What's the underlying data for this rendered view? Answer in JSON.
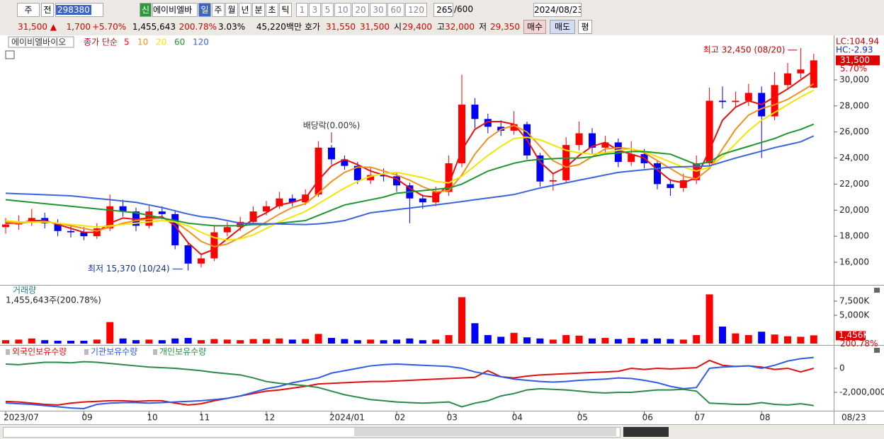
{
  "toolbar": {
    "type_menu": "주",
    "prev": "전",
    "code": "298380",
    "new": "신",
    "name": "에이비엘바",
    "periods": [
      "일",
      "주",
      "월",
      "년",
      "분",
      "초",
      "틱"
    ],
    "intervals": [
      "1",
      "3",
      "5",
      "10",
      "20",
      "30",
      "60",
      "120"
    ],
    "count": "265",
    "max": "/600",
    "date": "2024/08/23"
  },
  "quote": {
    "price": "31,500 ▲",
    "change": "1,700",
    "rate": "+5.70%",
    "volume": "1,455,643",
    "volume_ratio": "200.78%",
    "turnover": "3.03%",
    "amount": "45,220백만",
    "ask_label": "호가",
    "ask": "31,550",
    "bid": "31,500",
    "open_label": "시",
    "open": "29,400",
    "high_label": "고",
    "high": "32,000",
    "low_label": "저",
    "low": "29,350",
    "buttons": [
      "매수",
      "매도",
      "평"
    ]
  },
  "chart_data": [
    {
      "type": "candlestick",
      "title": "에이비엘바이오",
      "subtitle": "종가 단순",
      "up_color": "#ff0000",
      "down_color": "#0000ff",
      "open": [
        18700,
        18900,
        19100,
        19400,
        19000,
        18400,
        18300,
        18000,
        18600,
        20300,
        19900,
        18800,
        19900,
        19700,
        17300,
        15900,
        16300,
        18300,
        18700,
        19100,
        19900,
        20300,
        20900,
        20600,
        21200,
        24800,
        23900,
        23400,
        22300,
        22700,
        22600,
        21900,
        20900,
        20600,
        21400,
        23600,
        28100,
        27000,
        26400,
        26100,
        26600,
        24200,
        22200,
        22300,
        25000,
        25900,
        24800,
        25200,
        23700,
        24300,
        23600,
        22000,
        21700,
        22300,
        23600,
        28400,
        28300,
        28400,
        29000,
        27200,
        29600,
        30500,
        29400
      ],
      "high": [
        19400,
        19600,
        20100,
        19800,
        19300,
        18800,
        18700,
        19000,
        21200,
        20800,
        20200,
        20400,
        20300,
        19900,
        17500,
        16700,
        18800,
        19100,
        19500,
        20300,
        20700,
        21400,
        21200,
        21600,
        25300,
        25000,
        24200,
        23700,
        23300,
        23200,
        22900,
        22100,
        21200,
        21800,
        24200,
        30400,
        28600,
        27400,
        26900,
        27600,
        26800,
        24400,
        22800,
        25600,
        26800,
        26300,
        25700,
        25500,
        25300,
        24700,
        23800,
        22400,
        22800,
        24200,
        29400,
        29500,
        29100,
        29700,
        29500,
        30600,
        31300,
        32450,
        32000
      ],
      "low": [
        18200,
        18500,
        18800,
        18600,
        18000,
        17900,
        17700,
        17800,
        18400,
        19500,
        18400,
        18600,
        19300,
        17000,
        15370,
        15600,
        16100,
        18000,
        18400,
        18900,
        19600,
        20100,
        20300,
        20400,
        21000,
        23500,
        23100,
        22000,
        22000,
        22200,
        21400,
        19000,
        20100,
        20300,
        21100,
        23300,
        26300,
        25900,
        25700,
        25800,
        23900,
        21800,
        21500,
        22100,
        24600,
        24300,
        24400,
        23300,
        23400,
        23200,
        21600,
        21100,
        21400,
        22000,
        23400,
        27800,
        27900,
        28000,
        24000,
        26900,
        29300,
        30100,
        29350
      ],
      "close": [
        18900,
        19100,
        19400,
        19000,
        18400,
        18300,
        18000,
        18600,
        20300,
        19900,
        18800,
        19900,
        19700,
        17300,
        15900,
        16300,
        18300,
        18700,
        19100,
        19900,
        20300,
        20900,
        20600,
        21200,
        24800,
        23900,
        23400,
        22300,
        22700,
        22600,
        21900,
        20900,
        20600,
        21400,
        23600,
        28100,
        27000,
        26400,
        26100,
        26600,
        24200,
        22200,
        22300,
        25000,
        25900,
        24800,
        25200,
        23700,
        24300,
        23600,
        22000,
        21700,
        22300,
        23600,
        28400,
        28300,
        28400,
        29000,
        27200,
        29600,
        30500,
        30800,
        31500
      ],
      "series": [
        {
          "name": "5",
          "color": "#e81010",
          "values": [
            19000,
            19000,
            19200,
            19200,
            18900,
            18600,
            18300,
            18300,
            19000,
            19400,
            19300,
            19400,
            19500,
            18800,
            17500,
            16600,
            17000,
            17800,
            18600,
            19300,
            19800,
            20400,
            20600,
            20900,
            22300,
            23400,
            23900,
            23500,
            23000,
            22700,
            22400,
            21700,
            21100,
            21000,
            22000,
            24600,
            26200,
            26800,
            26800,
            26600,
            25400,
            23700,
            22800,
            23300,
            24200,
            24900,
            25200,
            24600,
            24300,
            24000,
            23100,
            22300,
            22100,
            22500,
            24600,
            26900,
            27900,
            28400,
            28100,
            28700,
            29300,
            30000,
            30700
          ]
        },
        {
          "name": "10",
          "color": "#f0901e",
          "values": [
            19100,
            19000,
            19100,
            19100,
            19000,
            18800,
            18600,
            18400,
            18700,
            19000,
            19200,
            19300,
            19400,
            19100,
            18400,
            17600,
            17200,
            17400,
            17900,
            18500,
            19100,
            19700,
            20200,
            20500,
            21300,
            22200,
            22900,
            23300,
            23300,
            23000,
            22700,
            22300,
            21800,
            21400,
            21500,
            22700,
            24300,
            25500,
            26200,
            26500,
            26000,
            24900,
            23800,
            23300,
            23500,
            24100,
            24700,
            24800,
            24700,
            24400,
            23800,
            23200,
            22600,
            22400,
            23200,
            24700,
            26200,
            27300,
            27800,
            28100,
            28500,
            29100,
            29700
          ]
        },
        {
          "name": "20",
          "color": "#f2e600",
          "values": [
            19200,
            19100,
            19100,
            19100,
            19000,
            18900,
            18800,
            18700,
            18800,
            18900,
            19000,
            19100,
            19200,
            19100,
            18800,
            18300,
            17900,
            17700,
            17800,
            18100,
            18600,
            19100,
            19500,
            19900,
            20500,
            21100,
            21700,
            22200,
            22600,
            22800,
            22900,
            22700,
            22500,
            22200,
            22100,
            22600,
            23400,
            24200,
            24900,
            25500,
            25600,
            25400,
            25000,
            24600,
            24400,
            24300,
            24400,
            24600,
            24700,
            24500,
            24100,
            23700,
            23300,
            23000,
            23300,
            24100,
            25100,
            26100,
            26900,
            27500,
            28100,
            28700,
            29200
          ]
        },
        {
          "name": "60",
          "color": "#1e9632",
          "values": [
            20800,
            20700,
            20600,
            20500,
            20400,
            20300,
            20200,
            20100,
            20000,
            19900,
            19800,
            19600,
            19400,
            19200,
            19000,
            18900,
            18800,
            18800,
            18800,
            18900,
            18900,
            19000,
            19100,
            19200,
            19600,
            20000,
            20400,
            20600,
            20800,
            21000,
            21300,
            21400,
            21500,
            21600,
            21700,
            22000,
            22500,
            23000,
            23300,
            23600,
            23800,
            23900,
            23950,
            24000,
            24000,
            24100,
            24300,
            24400,
            24500,
            24500,
            24400,
            24300,
            23900,
            23500,
            23700,
            24300,
            24600,
            24900,
            25200,
            25500,
            25900,
            26200,
            26600
          ]
        },
        {
          "name": "120",
          "color": "#3c64dc",
          "values": [
            21300,
            21260,
            21220,
            21180,
            21140,
            21100,
            21000,
            20900,
            20800,
            20700,
            20600,
            20400,
            20200,
            19950,
            19700,
            19500,
            19400,
            19200,
            19000,
            18980,
            18960,
            18940,
            18920,
            18900,
            18950,
            19050,
            19200,
            19500,
            19800,
            19920,
            20040,
            20160,
            20280,
            20400,
            20530,
            20660,
            20800,
            20930,
            21060,
            21200,
            21450,
            21700,
            21900,
            22100,
            22300,
            22500,
            22700,
            22900,
            23000,
            23100,
            23200,
            23300,
            23330,
            23360,
            23400,
            23700,
            24000,
            24270,
            24530,
            24800,
            25020,
            25250,
            25700
          ]
        }
      ],
      "ylim": [
        14264,
        33310
      ],
      "yticks": [
        {
          "value": 16000,
          "label": "16,000"
        },
        {
          "value": 18000,
          "label": "18,000"
        },
        {
          "value": 20000,
          "label": "20,000"
        },
        {
          "value": 22000,
          "label": "22,000"
        },
        {
          "value": 24000,
          "label": "24,000"
        },
        {
          "value": 26000,
          "label": "26,000"
        },
        {
          "value": 28000,
          "label": "28,000"
        },
        {
          "value": 30000,
          "label": "30,000"
        }
      ],
      "annotations": {
        "high": "최고 32,450 (08/20)",
        "low": "최저 15,370 (10/24)",
        "event": "배당락(0.00%)"
      },
      "right_labels": {
        "lc": "LC:104.94",
        "hc": "HC:-2.93",
        "last": "31,500",
        "rate": "5.70%"
      }
    },
    {
      "type": "bar",
      "title": "거래량",
      "subtitle": "1,455,643주(200.78%)",
      "values": [
        600000,
        700000,
        900000,
        600000,
        500000,
        500000,
        500000,
        700000,
        3800000,
        900000,
        600000,
        700000,
        600000,
        900000,
        1000000,
        600000,
        800000,
        700000,
        600000,
        800000,
        800000,
        900000,
        700000,
        800000,
        1700000,
        1000000,
        800000,
        600000,
        700000,
        600000,
        700000,
        900000,
        600000,
        700000,
        1500000,
        8200000,
        3600000,
        1500000,
        1200000,
        1900000,
        1100000,
        900000,
        700000,
        1500000,
        1400000,
        900000,
        1000000,
        800000,
        1000000,
        800000,
        900000,
        800000,
        700000,
        1500000,
        8700000,
        3000000,
        1800000,
        1500000,
        2100000,
        1600000,
        1300000,
        1200000,
        1455643
      ],
      "ylim": [
        0,
        10125000
      ],
      "yticks": [
        {
          "value": 5000000,
          "label": "5,000K"
        },
        {
          "value": 7500000,
          "label": "7,500K"
        }
      ],
      "last_label": "1,456K",
      "last_rate": "200.78%"
    },
    {
      "type": "line",
      "categories": [
        "2023/07",
        null,
        null,
        null,
        null,
        null,
        "09",
        null,
        null,
        null,
        null,
        "10",
        null,
        null,
        null,
        "11",
        null,
        null,
        null,
        null,
        "12",
        null,
        null,
        null,
        null,
        "2024/01",
        null,
        null,
        null,
        null,
        "02",
        null,
        null,
        null,
        "03",
        null,
        null,
        null,
        null,
        "04",
        null,
        null,
        null,
        null,
        "05",
        null,
        null,
        null,
        null,
        "06",
        null,
        null,
        null,
        "07",
        null,
        null,
        null,
        null,
        "08",
        null,
        null,
        null,
        null
      ],
      "series": [
        {
          "name": "외국인보유수량",
          "color": "#e01010",
          "values": [
            -2760000,
            -2800000,
            -2900000,
            -3000000,
            -3050000,
            -2900000,
            -2800000,
            -2750000,
            -2700000,
            -2700000,
            -2750000,
            -2700000,
            -2700000,
            -2900000,
            -3050000,
            -2950000,
            -2700000,
            -2500000,
            -2300000,
            -2100000,
            -1900000,
            -1800000,
            -1650000,
            -1500000,
            -1300000,
            -1250000,
            -1200000,
            -1150000,
            -1100000,
            -1100000,
            -1050000,
            -1000000,
            -950000,
            -900000,
            -850000,
            -800000,
            -750000,
            -200000,
            -700000,
            -800000,
            -650000,
            -550000,
            -500000,
            -450000,
            -400000,
            -350000,
            -300000,
            -250000,
            0,
            -100000,
            0,
            -50000,
            0,
            50000,
            650000,
            250000,
            150000,
            200000,
            100000,
            -100000,
            0,
            -300000,
            0
          ]
        },
        {
          "name": "기관보유수량",
          "color": "#2e5ce6",
          "values": [
            -2880000,
            -2950000,
            -3000000,
            -3100000,
            -3200000,
            -3300000,
            -3350000,
            -3000000,
            -2900000,
            -2850000,
            -2850000,
            -2900000,
            -2850000,
            -2800000,
            -2750000,
            -2700000,
            -2600000,
            -2500000,
            -2300000,
            -2000000,
            -1700000,
            -1500000,
            -1200000,
            -1000000,
            -800000,
            -400000,
            -200000,
            0,
            200000,
            300000,
            350000,
            300000,
            250000,
            200000,
            150000,
            0,
            -300000,
            -500000,
            -700000,
            -900000,
            -1000000,
            -1100000,
            -1150000,
            -1100000,
            -1000000,
            -950000,
            -900000,
            -800000,
            -850000,
            -1000000,
            -1200000,
            -1500000,
            -1700000,
            -1600000,
            0,
            100000,
            150000,
            200000,
            0,
            250000,
            600000,
            800000,
            900000
          ]
        },
        {
          "name": "개인보유수량",
          "color": "#2a8a4a",
          "values": [
            350000,
            300000,
            400000,
            500000,
            500000,
            450000,
            550000,
            500000,
            400000,
            300000,
            200000,
            100000,
            50000,
            0,
            -100000,
            -200000,
            -350000,
            -450000,
            -550000,
            -800000,
            -1100000,
            -1250000,
            -1350000,
            -1450000,
            -1600000,
            -1900000,
            -2200000,
            -2400000,
            -2600000,
            -2700000,
            -2800000,
            -2850000,
            -2900000,
            -2850000,
            -2800000,
            -3200000,
            -2900000,
            -2700000,
            -2300000,
            -2100000,
            -1800000,
            -1700000,
            -1750000,
            -1800000,
            -1900000,
            -2000000,
            -2050000,
            -2000000,
            -2000000,
            -1900000,
            -1800000,
            -1800000,
            -1750000,
            -1900000,
            -2900000,
            -2950000,
            -3000000,
            -3000000,
            -2850000,
            -3000000,
            -3050000,
            -2950000,
            -3100000
          ]
        }
      ],
      "ylim": [
        -3470000,
        1820000
      ],
      "yticks": [
        0,
        {
          "value": -2000000,
          "label": "-2,000,000"
        }
      ],
      "last_date": "08/23"
    }
  ]
}
